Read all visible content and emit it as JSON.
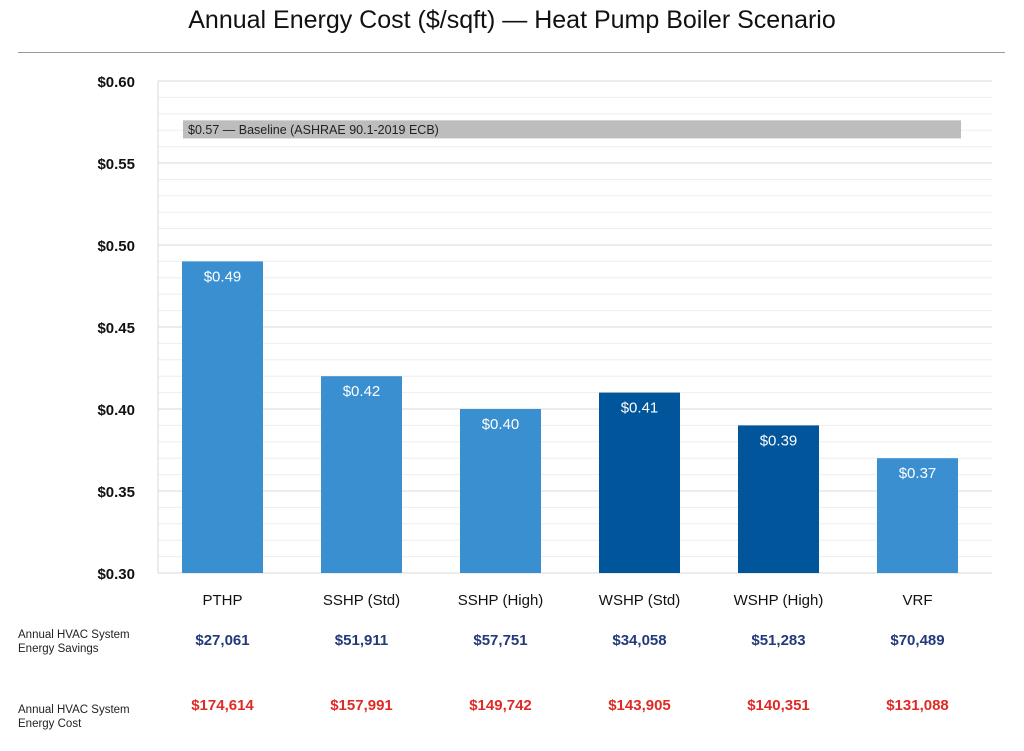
{
  "chart_data": {
    "type": "bar",
    "title": "Annual Energy Cost ($/sqft) — Heat Pump Boiler Scenario",
    "categories": [
      "PTHP",
      "SSHP (Std)",
      "SSHP (High)",
      "WSHP (Std)",
      "WSHP (High)",
      "VRF"
    ],
    "values": [
      0.49,
      0.42,
      0.4,
      0.41,
      0.39,
      0.37
    ],
    "data_labels": [
      "$0.49",
      "$0.42",
      "$0.40",
      "$0.41",
      "$0.39",
      "$0.37"
    ],
    "bar_colors": [
      "#3a8fd0",
      "#3a8fd0",
      "#3a8fd0",
      "#00559b",
      "#00559b",
      "#3a8fd0"
    ],
    "ylim": [
      0.3,
      0.6
    ],
    "yticks": [
      "$0.30",
      "$0.35",
      "$0.40",
      "$0.45",
      "$0.50",
      "$0.55",
      "$0.60"
    ],
    "ytick_values": [
      0.3,
      0.35,
      0.4,
      0.45,
      0.5,
      0.55,
      0.6
    ],
    "grid": true,
    "xlabel": "",
    "ylabel": "",
    "baseline": {
      "value": 0.57,
      "label": "$0.57 — Baseline (ASHRAE 90.1-2019 ECB)",
      "color": "#bdbdbd"
    }
  },
  "table": {
    "savings_label": "Annual HVAC System Energy Savings",
    "savings": [
      "$27,061",
      "$51,911",
      "$57,751",
      "$34,058",
      "$51,283",
      "$70,489"
    ],
    "savings_color": "#233a7a",
    "cost_label": "Annual HVAC System Energy Cost",
    "cost": [
      "$174,614",
      "$157,991",
      "$149,742",
      "$143,905",
      "$140,351",
      "$131,088"
    ],
    "cost_color": "#e02a26"
  }
}
